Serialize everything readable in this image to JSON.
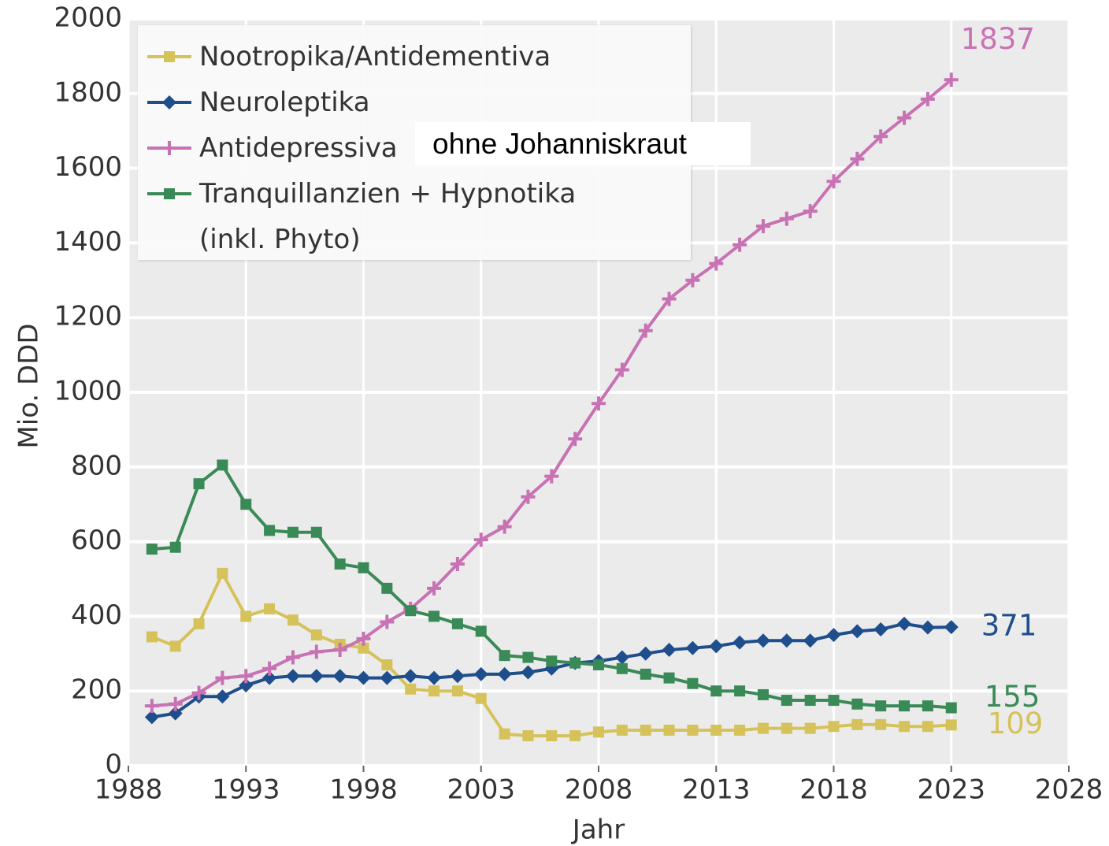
{
  "chart_data": {
    "type": "line",
    "xlabel": "Jahr",
    "ylabel": "Mio. DDD",
    "annotation": "ohne Johanniskraut",
    "x": [
      1989,
      1990,
      1991,
      1992,
      1993,
      1994,
      1995,
      1996,
      1997,
      1998,
      1999,
      2000,
      2001,
      2002,
      2003,
      2004,
      2005,
      2006,
      2007,
      2008,
      2009,
      2010,
      2011,
      2012,
      2013,
      2014,
      2015,
      2016,
      2017,
      2018,
      2019,
      2020,
      2021,
      2022,
      2023
    ],
    "xlim": [
      1988,
      2028
    ],
    "xticks": [
      1988,
      1993,
      1998,
      2003,
      2008,
      2013,
      2018,
      2023,
      2028
    ],
    "ylim": [
      0,
      2000
    ],
    "yticks": [
      0,
      200,
      400,
      600,
      800,
      1000,
      1200,
      1400,
      1600,
      1800,
      2000
    ],
    "grid": true,
    "legend": "upper left",
    "series": [
      {
        "name": "Nootropika/Antidementiva",
        "color": "#d6c25a",
        "marker": "square",
        "values": [
          345,
          320,
          380,
          515,
          400,
          420,
          390,
          350,
          325,
          315,
          270,
          205,
          200,
          200,
          180,
          85,
          80,
          80,
          80,
          90,
          95,
          95,
          95,
          95,
          95,
          95,
          100,
          100,
          100,
          105,
          110,
          110,
          105,
          105,
          109
        ]
      },
      {
        "name": "Neuroleptika",
        "color": "#1f4e8c",
        "marker": "diamond",
        "values": [
          130,
          140,
          185,
          185,
          215,
          235,
          240,
          240,
          240,
          235,
          235,
          240,
          235,
          240,
          245,
          245,
          250,
          260,
          275,
          280,
          290,
          300,
          310,
          315,
          320,
          330,
          335,
          335,
          335,
          350,
          360,
          365,
          380,
          370,
          371
        ]
      },
      {
        "name": "Antidepressiva",
        "color": "#c872b4",
        "marker": "plus",
        "values": [
          160,
          165,
          195,
          235,
          240,
          260,
          290,
          305,
          310,
          340,
          385,
          420,
          475,
          540,
          605,
          640,
          720,
          775,
          875,
          970,
          1060,
          1165,
          1250,
          1300,
          1345,
          1395,
          1445,
          1465,
          1485,
          1565,
          1625,
          1685,
          1735,
          1785,
          1837
        ]
      },
      {
        "name": "Tranquillanzien + Hypnotika (inkl. Phyto)",
        "color": "#3a8a57",
        "marker": "square",
        "values": [
          580,
          585,
          755,
          805,
          700,
          630,
          625,
          625,
          540,
          530,
          475,
          415,
          400,
          380,
          360,
          295,
          290,
          280,
          275,
          270,
          260,
          245,
          235,
          220,
          200,
          200,
          190,
          175,
          175,
          175,
          165,
          160,
          160,
          160,
          155
        ]
      }
    ]
  }
}
